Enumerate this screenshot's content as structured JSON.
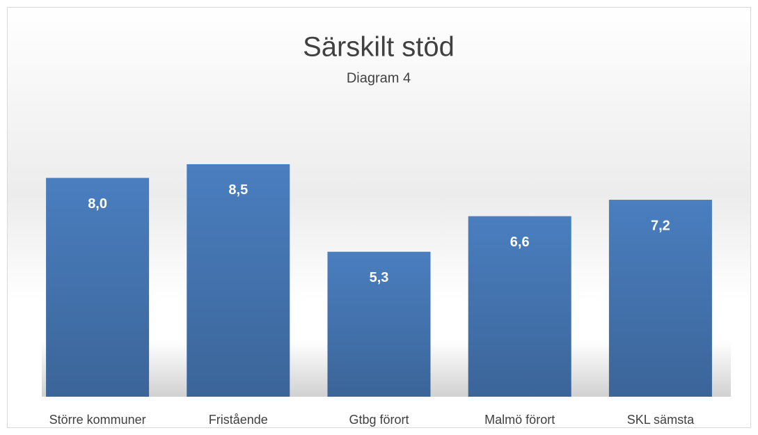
{
  "chart_data": {
    "type": "bar",
    "title": "Särskilt stöd",
    "subtitle": "Diagram 4",
    "categories": [
      "Större kommuner",
      "Fristående",
      "Gtbg förort",
      "Malmö förort",
      "SKL sämsta"
    ],
    "values": [
      8.0,
      8.5,
      5.3,
      6.6,
      7.2
    ],
    "value_labels": [
      "8,0",
      "8,5",
      "5,3",
      "6,6",
      "7,2"
    ],
    "color": "#4a7ebf"
  }
}
